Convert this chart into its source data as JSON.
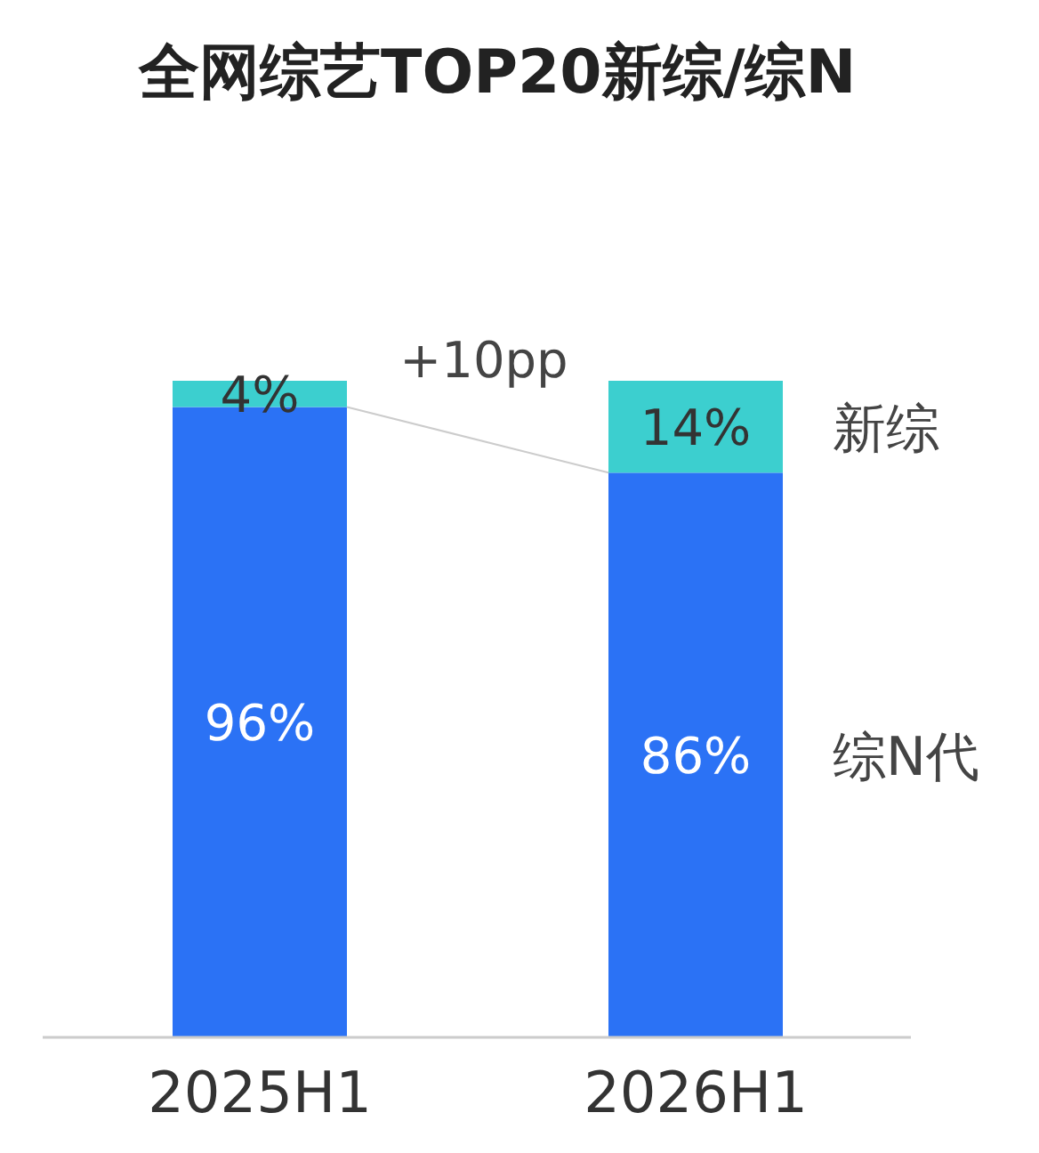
{
  "chart_data": {
    "type": "bar",
    "title": "全网综艺TOP20新综/综N",
    "categories": [
      "2025H1",
      "2026H1"
    ],
    "stacked": true,
    "series": [
      {
        "name": "综N代",
        "color": "#2b72f5",
        "values": [
          96,
          86
        ],
        "value_labels": [
          "96%",
          "86%"
        ]
      },
      {
        "name": "新综",
        "color": "#3ccfcf",
        "values": [
          4,
          14
        ],
        "value_labels": [
          "4%",
          "14%"
        ]
      }
    ],
    "annotations": [
      "+10pp"
    ],
    "legend": false
  }
}
